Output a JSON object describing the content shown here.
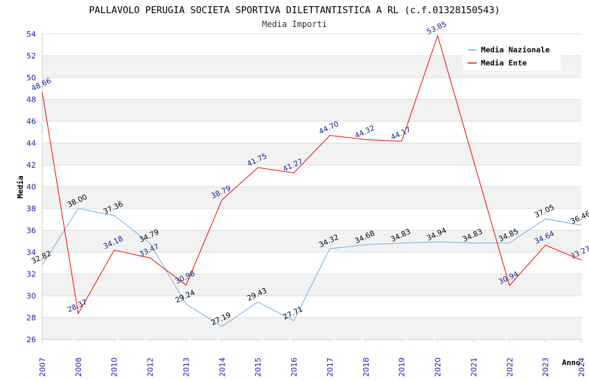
{
  "chart_data": {
    "type": "line",
    "title": "PALLAVOLO PERUGIA SOCIETA SPORTIVA DILETTANTISTICA A RL (c.f.01328150543)",
    "subtitle": "Media Importi",
    "xlabel": "Anno",
    "ylabel": "Media",
    "ylim": [
      26,
      54
    ],
    "yticks": [
      26,
      28,
      30,
      32,
      34,
      36,
      38,
      40,
      42,
      44,
      46,
      48,
      50,
      52,
      54
    ],
    "categories": [
      "2007",
      "2008",
      "2010",
      "2012",
      "2013",
      "2014",
      "2015",
      "2016",
      "2017",
      "2018",
      "2019",
      "2020",
      "2021",
      "2022",
      "2023",
      "2024"
    ],
    "series": [
      {
        "name": "Media Nazionale",
        "color": "#6aaee8",
        "label_color": "#000000",
        "values": [
          32.82,
          38.0,
          37.36,
          34.79,
          29.24,
          27.19,
          29.43,
          27.71,
          34.32,
          34.68,
          34.83,
          34.94,
          34.83,
          34.85,
          37.05,
          36.46
        ],
        "labels": [
          "32.82",
          "38.00",
          "37.36",
          "34.79",
          "29.24",
          "27.19",
          "29.43",
          "27.71",
          "34.32",
          "34.68",
          "34.83",
          "34.94",
          "34.83",
          "34.85",
          "37.05",
          "36.46"
        ]
      },
      {
        "name": "Media Ente",
        "color": "#ee0000",
        "label_color": "#1a1a8c",
        "values": [
          48.66,
          28.37,
          34.18,
          33.47,
          30.98,
          38.79,
          41.75,
          41.27,
          44.7,
          44.32,
          44.17,
          53.85,
          null,
          30.94,
          34.64,
          33.27
        ],
        "labels": [
          "48.66",
          "28.37",
          "34.18",
          "33.47",
          "30.98",
          "38.79",
          "41.75",
          "41.27",
          "44.70",
          "44.32",
          "44.17",
          "53.85",
          "",
          "30.94",
          "34.64",
          "33.27"
        ]
      }
    ],
    "grid": true,
    "band_colors": [
      "#f2f2f2",
      "#ffffff"
    ],
    "legend_position": "top-right"
  }
}
